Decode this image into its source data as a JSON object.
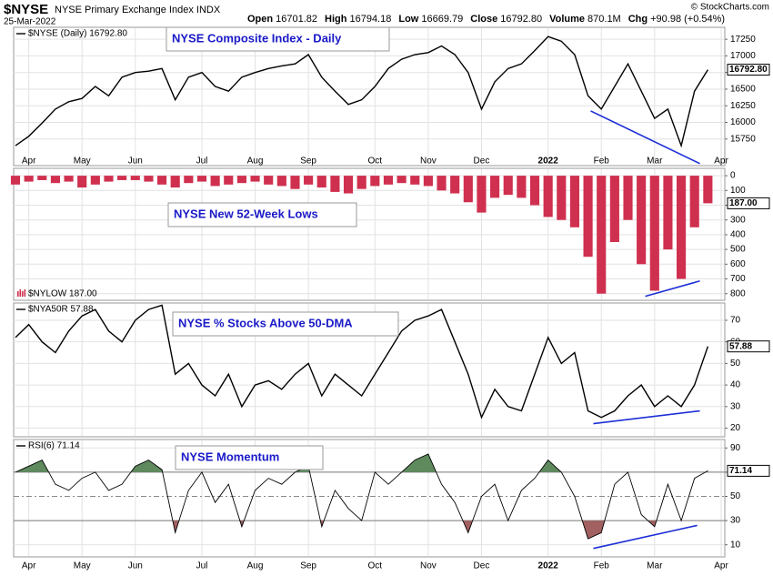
{
  "header": {
    "symbol": "$NYSE",
    "name": "NYSE Primary Exchange Index INDX",
    "date": "25-Mar-2022",
    "credit": "© StockCharts.com",
    "quote": [
      {
        "label": "Open",
        "value": "16701.82"
      },
      {
        "label": "High",
        "value": "16794.18"
      },
      {
        "label": "Low",
        "value": "16669.79"
      },
      {
        "label": "Close",
        "value": "16792.80"
      },
      {
        "label": "Volume",
        "value": "870.1M"
      },
      {
        "label": "Chg",
        "value": "+90.98 (+0.54%)"
      }
    ]
  },
  "chart_data": [
    {
      "type": "line",
      "legend": "$NYSE (Daily) 16792.80",
      "annotation": "NYSE Composite Index - Daily",
      "last_label": "16792.80",
      "color": "#000000",
      "categories": [
        null,
        "Apr",
        null,
        null,
        null,
        "May",
        null,
        null,
        null,
        "Jun",
        null,
        null,
        null,
        null,
        "Jul",
        null,
        null,
        null,
        "Aug",
        null,
        null,
        null,
        "Sep",
        null,
        null,
        null,
        null,
        "Oct",
        null,
        null,
        null,
        "Nov",
        null,
        null,
        null,
        "Dec",
        null,
        null,
        null,
        null,
        "2022",
        null,
        null,
        null,
        "Feb",
        null,
        null,
        null,
        "Mar",
        null,
        null,
        null,
        null,
        "Apr"
      ],
      "values": [
        15650,
        15790,
        15990,
        16200,
        16310,
        16360,
        16540,
        16400,
        16680,
        16750,
        16770,
        16810,
        16340,
        16680,
        16750,
        16540,
        16470,
        16680,
        16750,
        16810,
        16850,
        16880,
        17020,
        16680,
        16470,
        16270,
        16340,
        16540,
        16810,
        16950,
        17020,
        17050,
        17150,
        17020,
        16750,
        16200,
        16610,
        16810,
        16880,
        17080,
        17290,
        17220,
        17020,
        16400,
        16200,
        16540,
        16880,
        16470,
        16060,
        16200,
        15650,
        16470,
        16792.8,
        null
      ],
      "ylim": [
        15350,
        17430
      ],
      "yticks": [
        15750,
        16000,
        16250,
        16500,
        16750,
        17000,
        17250
      ],
      "trendline": {
        "from": {
          "index": 43.2,
          "value": 16172
        },
        "to": {
          "index": 51.4,
          "value": 15380
        }
      }
    },
    {
      "type": "bar",
      "legend": "$NYLOW 187.00",
      "annotation": "NYSE New 52-Week Lows",
      "last_label": "187.00",
      "color": "#d0304f",
      "inverted": true,
      "values": [
        60,
        40,
        30,
        50,
        40,
        80,
        60,
        40,
        30,
        30,
        40,
        60,
        80,
        50,
        40,
        70,
        60,
        50,
        40,
        60,
        70,
        90,
        60,
        80,
        110,
        120,
        90,
        70,
        60,
        50,
        60,
        70,
        100,
        120,
        180,
        250,
        150,
        130,
        150,
        200,
        280,
        300,
        350,
        550,
        800,
        450,
        300,
        600,
        780,
        500,
        700,
        350,
        187,
        null
      ],
      "ylim": [
        -50,
        845
      ],
      "yticks": [
        0,
        100,
        200,
        300,
        400,
        500,
        600,
        700,
        800
      ],
      "trendline": {
        "from": {
          "index": 47.3,
          "value": 818
        },
        "to": {
          "index": 51.4,
          "value": 714
        }
      }
    },
    {
      "type": "line",
      "legend": "$NYA50R 57.88",
      "annotation": "NYSE % Stocks Above 50-DMA",
      "last_label": "57.88",
      "color": "#000000",
      "values": [
        62,
        68,
        60,
        55,
        65,
        72,
        75,
        65,
        60,
        70,
        75,
        77,
        45,
        50,
        40,
        35,
        45,
        30,
        40,
        42,
        38,
        45,
        50,
        35,
        45,
        40,
        35,
        45,
        55,
        65,
        70,
        72,
        75,
        60,
        45,
        25,
        38,
        30,
        28,
        45,
        62,
        50,
        55,
        28,
        25,
        28,
        35,
        40,
        30,
        35,
        30,
        40,
        57.88,
        null
      ],
      "ylim": [
        16,
        78
      ],
      "yticks": [
        20,
        30,
        40,
        50,
        60,
        70
      ],
      "trendline": {
        "from": {
          "index": 43.4,
          "value": 22.1
        },
        "to": {
          "index": 51.4,
          "value": 28
        }
      }
    },
    {
      "type": "line",
      "legend": "RSI(6) 71.14",
      "annotation": "NYSE Momentum",
      "last_label": "71.14",
      "color": "#000000",
      "fill_above": 70,
      "fill_below": 30,
      "above_color": "#5e8a5e",
      "below_color": "#a26060",
      "categories": [
        null,
        "Apr",
        null,
        null,
        null,
        "May",
        null,
        null,
        null,
        "Jun",
        null,
        null,
        null,
        null,
        "Jul",
        null,
        null,
        null,
        "Aug",
        null,
        null,
        null,
        "Sep",
        null,
        null,
        null,
        null,
        "Oct",
        null,
        null,
        null,
        "Nov",
        null,
        null,
        null,
        "Dec",
        null,
        null,
        null,
        null,
        "2022",
        null,
        null,
        null,
        "Feb",
        null,
        null,
        null,
        "Mar",
        null,
        null,
        null,
        null,
        "Apr"
      ],
      "values": [
        70,
        75,
        80,
        60,
        55,
        65,
        70,
        55,
        60,
        75,
        80,
        72,
        20,
        55,
        70,
        45,
        60,
        25,
        55,
        65,
        60,
        70,
        75,
        25,
        55,
        40,
        30,
        70,
        60,
        70,
        80,
        85,
        60,
        45,
        20,
        50,
        60,
        30,
        55,
        65,
        80,
        70,
        50,
        15,
        20,
        60,
        70,
        35,
        25,
        60,
        30,
        65,
        71.14,
        null
      ],
      "ylim": [
        0,
        97
      ],
      "yticks": [
        10,
        30,
        50,
        70,
        90
      ],
      "trendline": {
        "from": {
          "index": 43.4,
          "value": 7
        },
        "to": {
          "index": 51.2,
          "value": 26
        }
      }
    }
  ]
}
